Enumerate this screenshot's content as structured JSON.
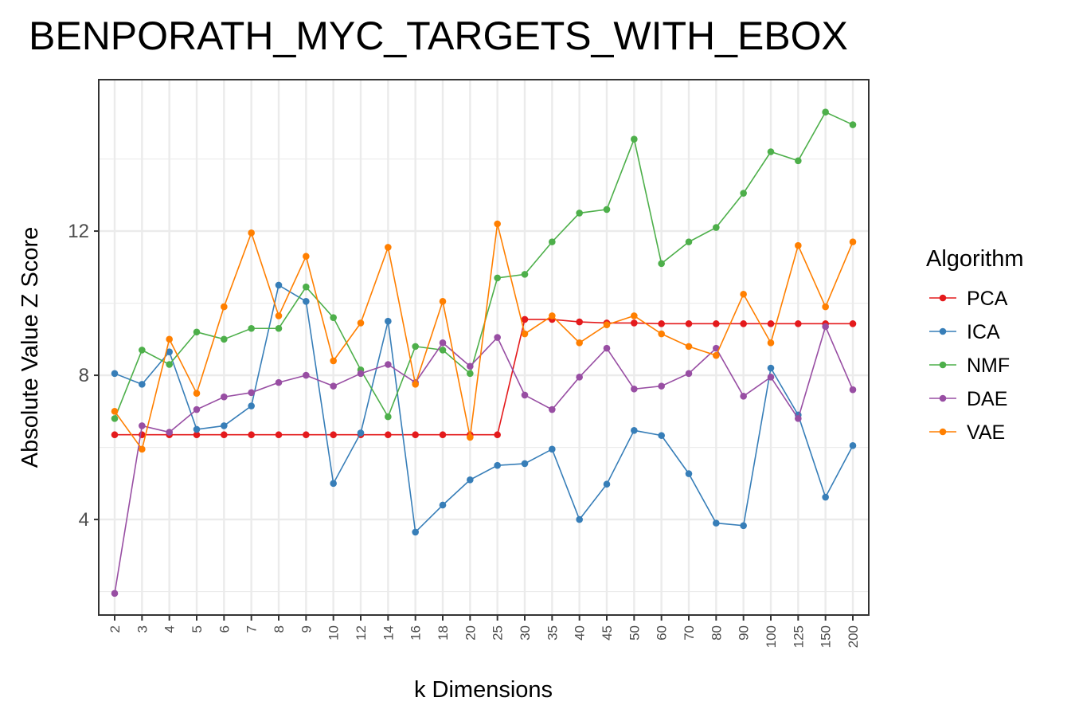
{
  "chart_data": {
    "type": "line",
    "title": "BENPORATH_MYC_TARGETS_WITH_EBOX",
    "xlabel": "k Dimensions",
    "ylabel": "Absolute Value Z Score",
    "categories": [
      "2",
      "3",
      "4",
      "5",
      "6",
      "7",
      "8",
      "9",
      "10",
      "12",
      "14",
      "16",
      "18",
      "20",
      "25",
      "30",
      "35",
      "40",
      "45",
      "50",
      "60",
      "70",
      "80",
      "90",
      "100",
      "125",
      "150",
      "200"
    ],
    "ylim": [
      1.35,
      16.2
    ],
    "yticks": [
      4,
      8,
      12
    ],
    "yticks_labels": [
      "4",
      "8",
      "12"
    ],
    "grid": true,
    "legend": {
      "title": "Algorithm",
      "position": "right"
    },
    "series": [
      {
        "name": "PCA",
        "color": "#e41a1c",
        "values": [
          6.35,
          6.35,
          6.35,
          6.35,
          6.35,
          6.35,
          6.35,
          6.35,
          6.35,
          6.35,
          6.35,
          6.35,
          6.35,
          6.35,
          6.35,
          9.55,
          9.55,
          9.48,
          9.45,
          9.45,
          9.43,
          9.43,
          9.43,
          9.43,
          9.43,
          9.43,
          9.43,
          9.43
        ]
      },
      {
        "name": "ICA",
        "color": "#377eb8",
        "values": [
          8.05,
          7.75,
          8.65,
          6.5,
          6.6,
          7.15,
          10.5,
          10.05,
          5.0,
          6.4,
          9.5,
          3.65,
          4.4,
          5.1,
          5.5,
          5.55,
          5.95,
          4.0,
          4.98,
          6.47,
          6.33,
          5.27,
          3.9,
          3.83,
          8.2,
          6.9,
          4.62,
          6.05
        ]
      },
      {
        "name": "NMF",
        "color": "#4daf4a",
        "values": [
          6.8,
          8.7,
          8.3,
          9.2,
          9.0,
          9.3,
          9.3,
          10.45,
          9.6,
          8.15,
          6.85,
          8.8,
          8.7,
          8.05,
          10.7,
          10.8,
          11.7,
          12.5,
          12.6,
          14.55,
          11.1,
          11.7,
          12.1,
          13.05,
          14.2,
          13.95,
          15.3,
          14.95
        ]
      },
      {
        "name": "DAE",
        "color": "#984ea3",
        "values": [
          1.95,
          6.6,
          6.42,
          7.05,
          7.4,
          7.52,
          7.8,
          8.0,
          7.7,
          8.05,
          8.3,
          7.8,
          8.9,
          8.25,
          9.05,
          7.45,
          7.05,
          7.95,
          8.75,
          7.62,
          7.7,
          8.05,
          8.75,
          7.42,
          7.95,
          6.8,
          9.35,
          7.6
        ]
      },
      {
        "name": "VAE",
        "color": "#ff7f00",
        "values": [
          7.0,
          5.95,
          9.0,
          7.5,
          9.9,
          11.95,
          9.65,
          11.3,
          8.4,
          9.45,
          11.55,
          7.75,
          10.05,
          6.28,
          12.2,
          9.15,
          9.65,
          8.9,
          9.4,
          9.65,
          9.15,
          8.8,
          8.55,
          10.25,
          8.9,
          11.6,
          9.9,
          11.7
        ]
      }
    ]
  }
}
